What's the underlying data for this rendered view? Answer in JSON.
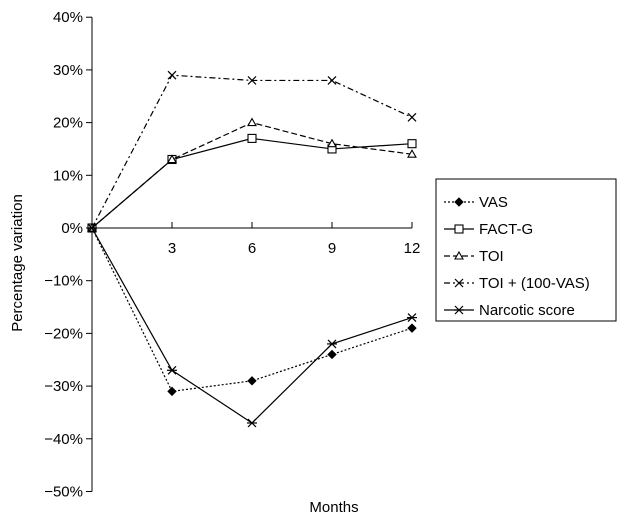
{
  "chart_data": {
    "type": "line",
    "title": "",
    "xlabel": "Months",
    "ylabel": "Percentage variation",
    "x": [
      0,
      3,
      6,
      9,
      12
    ],
    "x_tick_labels": [
      "3",
      "6",
      "9",
      "12"
    ],
    "ylim": [
      -50,
      40
    ],
    "y_ticks": [
      40,
      30,
      20,
      10,
      0,
      -10,
      -20,
      -30,
      -40,
      -50
    ],
    "y_tick_labels": [
      "40%",
      "30%",
      "20%",
      "10%",
      "0%",
      "−10%",
      "−20%",
      "−30%",
      "−40%",
      "−50%"
    ],
    "grid": false,
    "legend_position": "right",
    "series": [
      {
        "name": "VAS",
        "values": [
          0,
          -31,
          -29,
          -24,
          -19
        ],
        "marker": "diamond",
        "dash": "dotted",
        "color": "#000000"
      },
      {
        "name": "FACT-G",
        "values": [
          0,
          13,
          17,
          15,
          16
        ],
        "marker": "square",
        "dash": "solid",
        "color": "#000000"
      },
      {
        "name": "TOI",
        "values": [
          0,
          13,
          20,
          16,
          14
        ],
        "marker": "triangle",
        "dash": "dashed",
        "color": "#000000"
      },
      {
        "name": "TOI + (100-VAS)",
        "values": [
          0,
          29,
          28,
          28,
          21
        ],
        "marker": "x",
        "dash": "dashdot",
        "color": "#000000"
      },
      {
        "name": "Narcotic score",
        "values": [
          0,
          -27,
          -37,
          -22,
          -17
        ],
        "marker": "asterisk",
        "dash": "solid",
        "color": "#000000"
      }
    ]
  }
}
